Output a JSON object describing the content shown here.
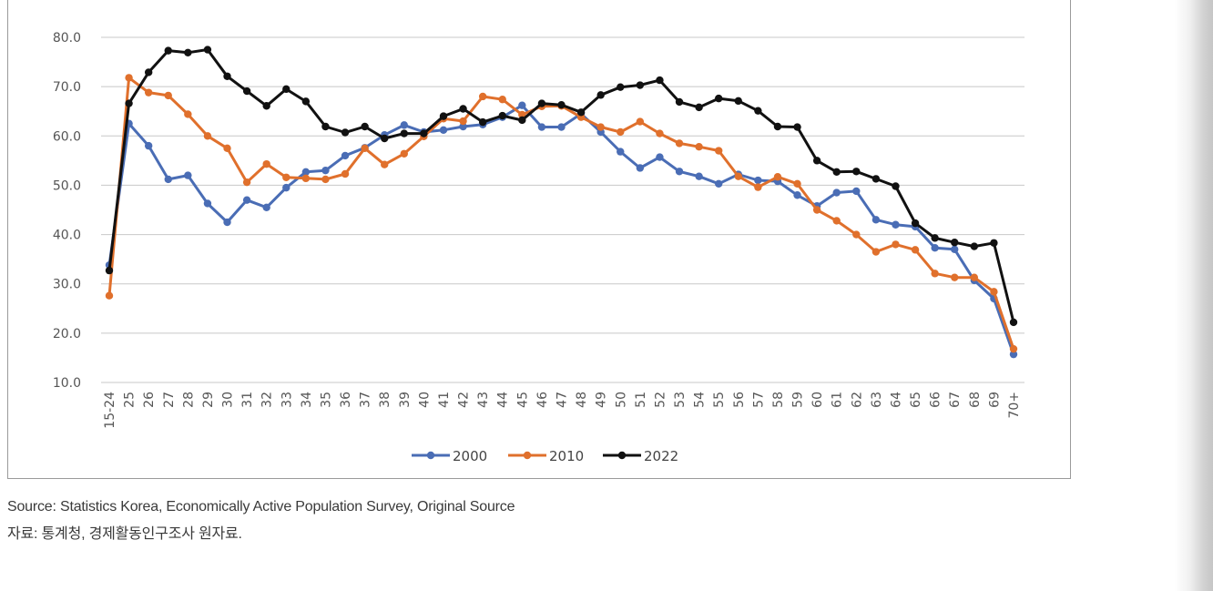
{
  "chart_data": {
    "type": "line",
    "title": "",
    "xlabel": "",
    "ylabel": "",
    "ylim": [
      10,
      80
    ],
    "y_ticks": [
      "10.0",
      "20.0",
      "30.0",
      "40.0",
      "50.0",
      "60.0",
      "70.0",
      "80.0"
    ],
    "grid": "horizontal",
    "legend_position": "bottom",
    "categories": [
      "15-24",
      "25",
      "26",
      "27",
      "28",
      "29",
      "30",
      "31",
      "32",
      "33",
      "34",
      "35",
      "36",
      "37",
      "38",
      "39",
      "40",
      "41",
      "42",
      "43",
      "44",
      "45",
      "46",
      "47",
      "48",
      "49",
      "50",
      "51",
      "52",
      "53",
      "54",
      "55",
      "56",
      "57",
      "58",
      "59",
      "60",
      "61",
      "62",
      "63",
      "64",
      "65",
      "66",
      "67",
      "68",
      "69",
      "70+"
    ],
    "series": [
      {
        "name": "2000",
        "color": "#4a6db5",
        "values": [
          33.8,
          62.5,
          58.0,
          51.2,
          52.0,
          46.3,
          42.5,
          47.0,
          45.5,
          49.5,
          52.7,
          53.0,
          56.0,
          57.6,
          60.2,
          62.2,
          60.8,
          61.2,
          61.9,
          62.3,
          63.8,
          66.2,
          61.8,
          61.8,
          64.5,
          60.8,
          56.8,
          53.5,
          55.7,
          52.8,
          51.8,
          50.3,
          52.2,
          51.0,
          50.8,
          48.0,
          45.8,
          48.5,
          48.8,
          43.0,
          42.0,
          41.6,
          37.3,
          37.0,
          30.7,
          27.0,
          15.7
        ]
      },
      {
        "name": "2010",
        "color": "#e0702c",
        "values": [
          27.6,
          71.8,
          68.8,
          68.2,
          64.4,
          60.0,
          57.5,
          50.6,
          54.3,
          51.6,
          51.4,
          51.2,
          52.3,
          57.5,
          54.2,
          56.4,
          59.9,
          63.5,
          63.0,
          68.0,
          67.4,
          64.3,
          66.0,
          66.1,
          63.8,
          61.8,
          60.8,
          62.9,
          60.5,
          58.5,
          57.8,
          57.0,
          51.8,
          49.6,
          51.7,
          50.3,
          45.0,
          42.8,
          40.0,
          36.5,
          38.0,
          36.9,
          32.1,
          31.3,
          31.3,
          28.4,
          16.8
        ]
      },
      {
        "name": "2022",
        "color": "#111111",
        "values": [
          32.7,
          66.6,
          72.9,
          77.3,
          76.9,
          77.5,
          72.1,
          69.1,
          66.1,
          69.5,
          67.0,
          61.9,
          60.7,
          61.9,
          59.5,
          60.5,
          60.5,
          64.0,
          65.5,
          62.8,
          64.1,
          63.2,
          66.6,
          66.3,
          64.8,
          68.3,
          69.9,
          70.3,
          71.3,
          66.9,
          65.8,
          67.6,
          67.1,
          65.1,
          61.9,
          61.8,
          55.0,
          52.7,
          52.8,
          51.3,
          49.8,
          42.3,
          39.3,
          38.4,
          37.6,
          38.3,
          22.2
        ]
      }
    ]
  },
  "footer": {
    "source_en": "Source: Statistics Korea, Economically Active Population Survey, Original Source",
    "source_ko": "자료: 통계청, 경제활동인구조사 원자료."
  }
}
